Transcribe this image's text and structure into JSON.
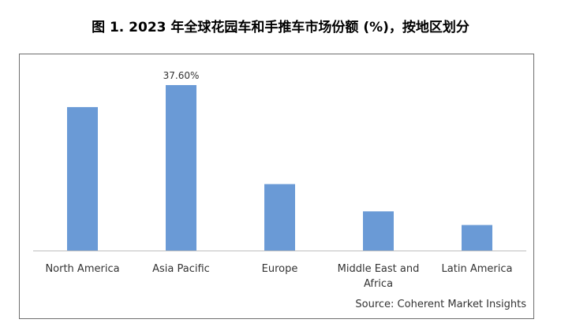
{
  "title": "图 1. 2023 年全球花园车和手推车市场份额 (%)，按地区划分",
  "source": "Source: Coherent Market Insights",
  "chart_data": {
    "type": "bar",
    "title": "图 1. 2023 年全球花园车和手推车市场份额 (%)，按地区划分",
    "categories": [
      [
        "North America"
      ],
      [
        "Asia Pacific"
      ],
      [
        "Europe"
      ],
      [
        "Middle East and",
        "Africa"
      ],
      [
        "Latin America"
      ]
    ],
    "values": [
      32.6,
      37.6,
      15.1,
      8.9,
      5.8
    ],
    "data_labels": [
      "",
      "37.60%",
      "",
      "",
      ""
    ],
    "ylim": [
      0,
      40
    ],
    "grid": false,
    "bar_color": "#6a9ad6",
    "axis_color": "#bfbfbf"
  }
}
